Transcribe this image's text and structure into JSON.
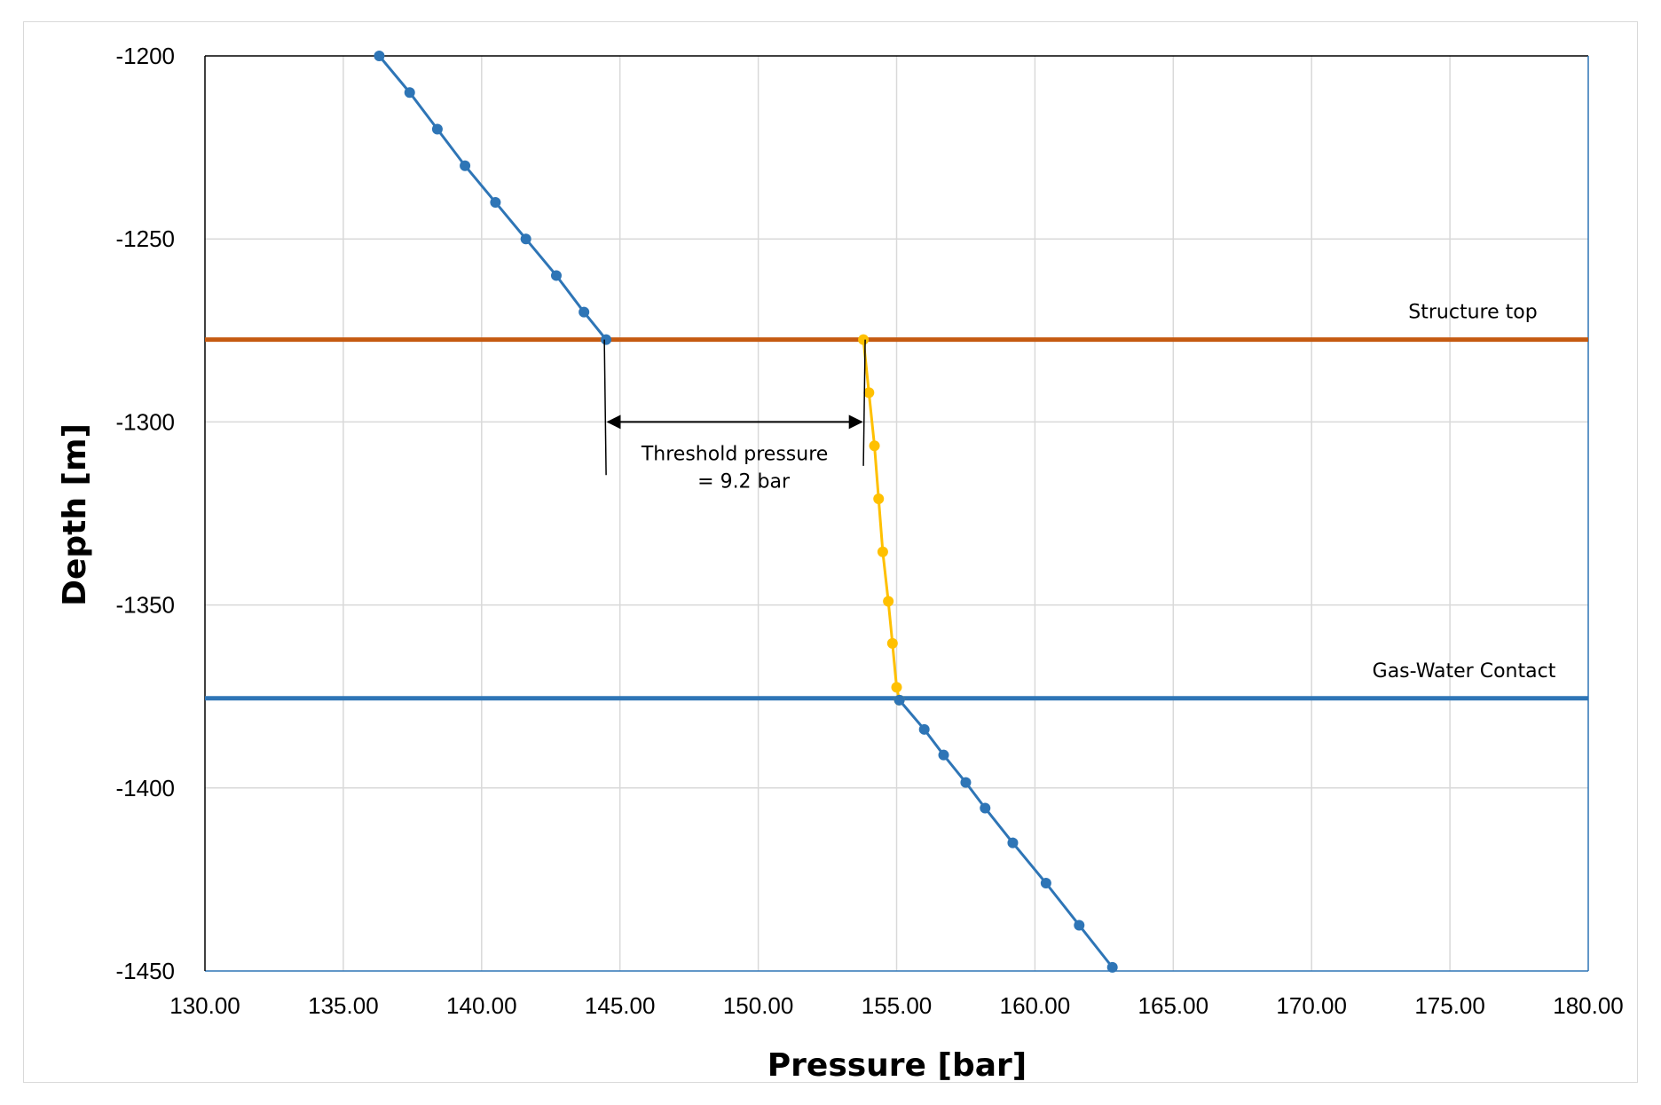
{
  "chart_data": {
    "type": "line",
    "title": "",
    "xlabel": "Pressure [bar]",
    "ylabel": "Depth [m]",
    "xlim": [
      130,
      180
    ],
    "ylim": [
      -1450,
      -1200
    ],
    "x_tick_labels": [
      "130.00",
      "135.00",
      "140.00",
      "145.00",
      "150.00",
      "155.00",
      "160.00",
      "165.00",
      "170.00",
      "175.00",
      "180.00"
    ],
    "y_tick_labels": [
      "-1200",
      "-1250",
      "-1300",
      "-1350",
      "-1400",
      "-1450"
    ],
    "grid": true,
    "series": [
      {
        "color": "#2e75b6",
        "points": [
          [
            136.3,
            -1200
          ],
          [
            137.4,
            -1210
          ],
          [
            138.4,
            -1220
          ],
          [
            139.4,
            -1230
          ],
          [
            140.5,
            -1240
          ],
          [
            141.6,
            -1250
          ],
          [
            142.7,
            -1260
          ],
          [
            143.7,
            -1270
          ],
          [
            144.5,
            -1277.5
          ]
        ]
      },
      {
        "color": "#ffc000",
        "points": [
          [
            153.8,
            -1277.5
          ],
          [
            154.0,
            -1292
          ],
          [
            154.2,
            -1306.5
          ],
          [
            154.35,
            -1321
          ],
          [
            154.5,
            -1335.5
          ],
          [
            154.7,
            -1349
          ],
          [
            154.85,
            -1360.5
          ],
          [
            155.0,
            -1372.5
          ],
          [
            155.1,
            -1376
          ]
        ]
      },
      {
        "color": "#2e75b6",
        "points": [
          [
            155.1,
            -1376
          ],
          [
            156.0,
            -1384
          ],
          [
            156.7,
            -1391
          ],
          [
            157.5,
            -1398.5
          ],
          [
            158.2,
            -1405.5
          ],
          [
            159.2,
            -1415
          ],
          [
            160.4,
            -1426
          ],
          [
            161.6,
            -1437.5
          ],
          [
            162.8,
            -1449
          ]
        ]
      }
    ],
    "reference_lines": [
      {
        "label": "Structure  top",
        "y": -1277.5,
        "color": "#c55a11"
      },
      {
        "label": "Gas-Water Contact",
        "y": -1375.5,
        "color": "#2e75b6"
      }
    ],
    "annotations": {
      "threshold_line1": "Threshold pressure",
      "threshold_line2": "= 9.2 bar",
      "arrow_from_x": 144.5,
      "arrow_to_x": 153.8,
      "arrow_y": -1300
    }
  }
}
